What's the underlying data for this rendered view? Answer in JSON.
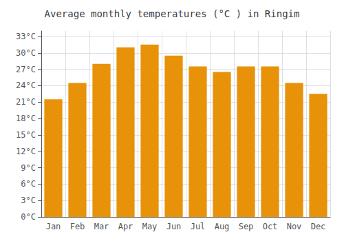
{
  "chart_data": {
    "type": "bar",
    "title": "Average monthly temperatures (°C ) in Ringim",
    "categories": [
      "Jan",
      "Feb",
      "Mar",
      "Apr",
      "May",
      "Jun",
      "Jul",
      "Aug",
      "Sep",
      "Oct",
      "Nov",
      "Dec"
    ],
    "values": [
      21.5,
      24.5,
      28.0,
      31.0,
      31.5,
      29.5,
      27.5,
      26.5,
      27.5,
      27.5,
      24.5,
      22.5
    ],
    "color": "#E8920A",
    "ylim": [
      0,
      34
    ],
    "yticks": [
      {
        "value": 0,
        "label": "0°C"
      },
      {
        "value": 3,
        "label": "3°C"
      },
      {
        "value": 6,
        "label": "6°C"
      },
      {
        "value": 9,
        "label": "9°C"
      },
      {
        "value": 12,
        "label": "12°C"
      },
      {
        "value": 15,
        "label": "15°C"
      },
      {
        "value": 18,
        "label": "18°C"
      },
      {
        "value": 21,
        "label": "21°C"
      },
      {
        "value": 24,
        "label": "24°C"
      },
      {
        "value": 27,
        "label": "27°C"
      },
      {
        "value": 30,
        "label": "30°C"
      },
      {
        "value": 33,
        "label": "33°C"
      }
    ],
    "grid": true
  }
}
